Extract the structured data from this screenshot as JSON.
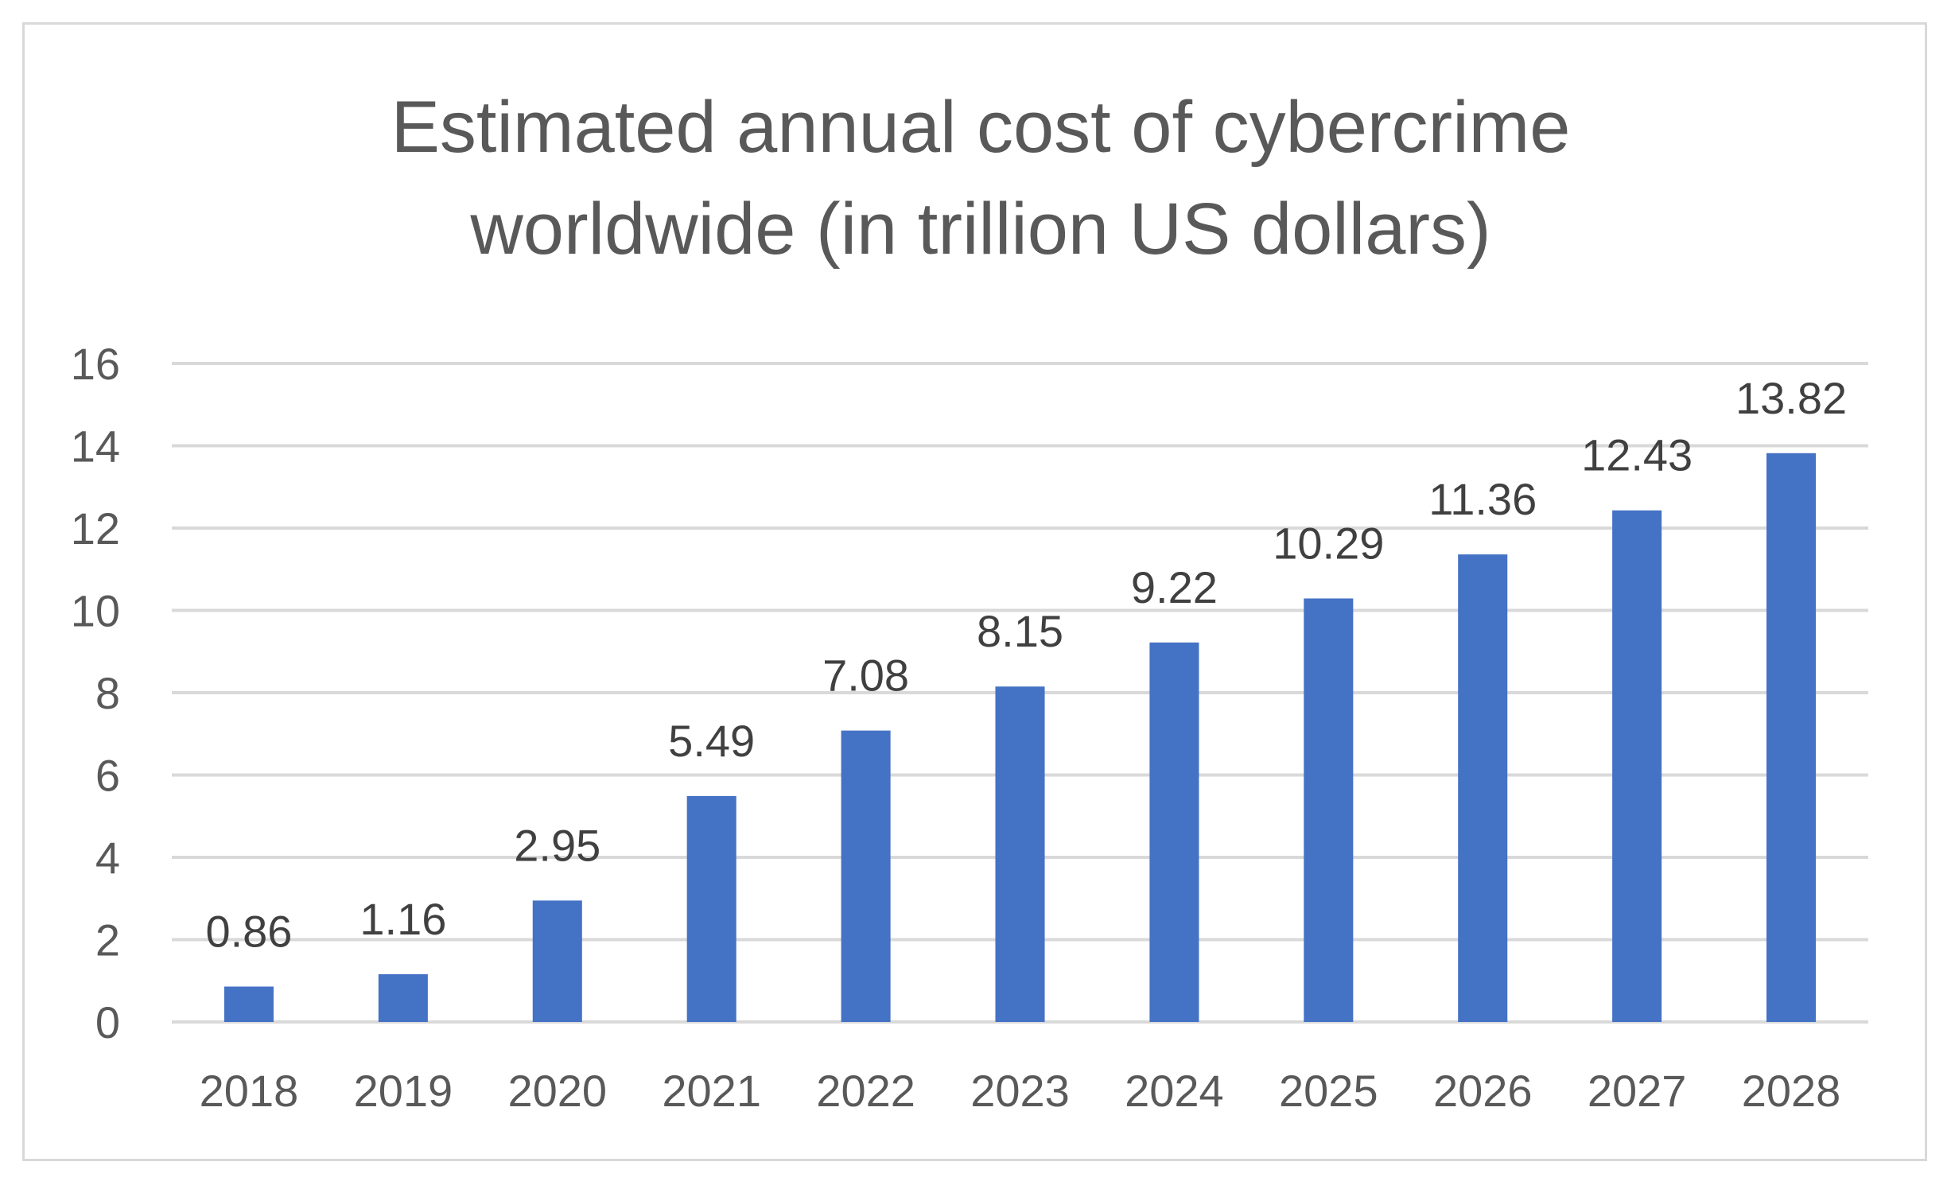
{
  "chart_data": {
    "type": "bar",
    "title": "Estimated annual cost of cybercrime worldwide (in trillion US dollars)",
    "title_lines": [
      "Estimated annual cost of cybercrime",
      "worldwide (in trillion US dollars)"
    ],
    "categories": [
      "2018",
      "2019",
      "2020",
      "2021",
      "2022",
      "2023",
      "2024",
      "2025",
      "2026",
      "2027",
      "2028"
    ],
    "values": [
      0.86,
      1.16,
      2.95,
      5.49,
      7.08,
      8.15,
      9.22,
      10.29,
      11.36,
      12.43,
      13.82
    ],
    "data_labels": [
      "0.86",
      "1.16",
      "2.95",
      "5.49",
      "7.08",
      "8.15",
      "9.22",
      "10.29",
      "11.36",
      "12.43",
      "13.82"
    ],
    "ylim": [
      0,
      16
    ],
    "yticks": [
      0,
      2,
      4,
      6,
      8,
      10,
      12,
      14,
      16
    ],
    "xlabel": "",
    "ylabel": "",
    "grid": true,
    "legend": "none",
    "colors": {
      "bar": "#4472c4",
      "grid": "#d9d9d9",
      "text": "#595959",
      "label": "#404040"
    }
  }
}
